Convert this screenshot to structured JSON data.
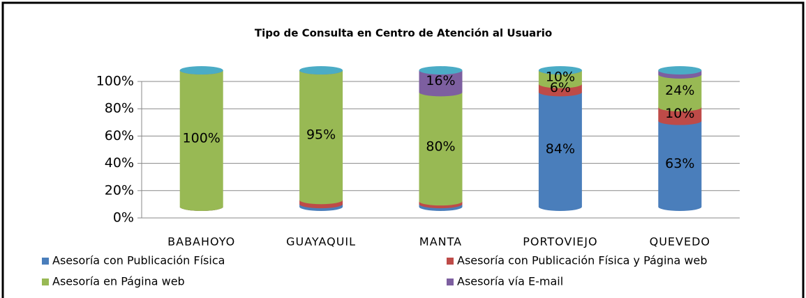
{
  "chart_data": {
    "type": "stacked-cylinder",
    "title": "Tipo de Consulta en Centro de Atención al Usuario",
    "categories": [
      "BABAHOYO",
      "GUAYAQUIL",
      "MANTA",
      "PORTOVIEJO",
      "QUEVEDO"
    ],
    "series": [
      {
        "name": "Asesoría con Publicación Física",
        "color": "#4a7ebb",
        "values": [
          0,
          2,
          2,
          84,
          63
        ],
        "value_labels": [
          null,
          null,
          null,
          "84%",
          "63%"
        ]
      },
      {
        "name": "Asesoría con Publicación Física y Página web",
        "color": "#be4b48",
        "values": [
          0,
          3,
          2,
          6,
          10
        ],
        "value_labels": [
          null,
          null,
          null,
          "6%",
          "10%"
        ]
      },
      {
        "name": "Asesoría en Página web",
        "color": "#98b954",
        "values": [
          100,
          95,
          80,
          10,
          24
        ],
        "value_labels": [
          "100%",
          "95%",
          "80%",
          "10%",
          "24%"
        ]
      },
      {
        "name": "Asesoría vía E-mail",
        "color": "#7d5fa0",
        "values": [
          0,
          0,
          16,
          0,
          3
        ],
        "value_labels": [
          null,
          null,
          "16%",
          null,
          null
        ]
      }
    ],
    "ylim": [
      0,
      100
    ],
    "yticks": [
      {
        "value": 0,
        "label": "0%"
      },
      {
        "value": 20,
        "label": "20%"
      },
      {
        "value": 40,
        "label": "40%"
      },
      {
        "value": 60,
        "label": "60%"
      },
      {
        "value": 80,
        "label": "80%"
      },
      {
        "value": 100,
        "label": "100%"
      }
    ],
    "grid": true,
    "legend": "bottom"
  }
}
